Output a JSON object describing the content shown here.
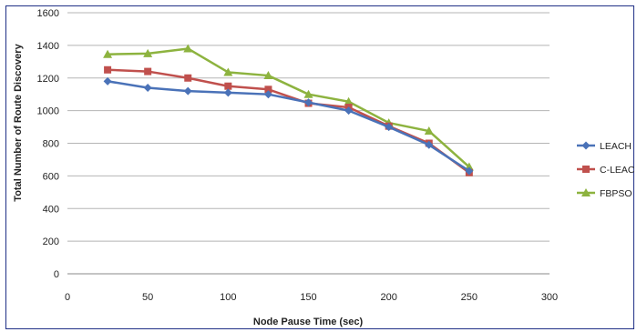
{
  "chart_data": {
    "type": "line",
    "title": "",
    "xlabel": "Node Pause Time (sec)",
    "ylabel": "Total Number of Route Discovery",
    "xlim": [
      0,
      300
    ],
    "ylim": [
      0,
      1600
    ],
    "x_ticks": [
      0,
      50,
      100,
      150,
      200,
      250,
      300
    ],
    "y_ticks": [
      0,
      200,
      400,
      600,
      800,
      1000,
      1200,
      1400,
      1600
    ],
    "grid": "horizontal",
    "legend_position": "right",
    "x": [
      25,
      50,
      75,
      100,
      125,
      150,
      175,
      200,
      225,
      250
    ],
    "series": [
      {
        "name": "LEACH",
        "color": "#4a72b8",
        "marker": "diamond",
        "values": [
          1180,
          1140,
          1120,
          1110,
          1100,
          1050,
          1000,
          900,
          790,
          630
        ]
      },
      {
        "name": "C-LEACH",
        "color": "#c0504d",
        "marker": "square",
        "values": [
          1250,
          1240,
          1200,
          1150,
          1130,
          1045,
          1020,
          905,
          800,
          620
        ]
      },
      {
        "name": "FBPSO",
        "color": "#8db33f",
        "marker": "triangle",
        "values": [
          1345,
          1350,
          1380,
          1235,
          1215,
          1100,
          1055,
          925,
          875,
          655
        ]
      }
    ]
  }
}
